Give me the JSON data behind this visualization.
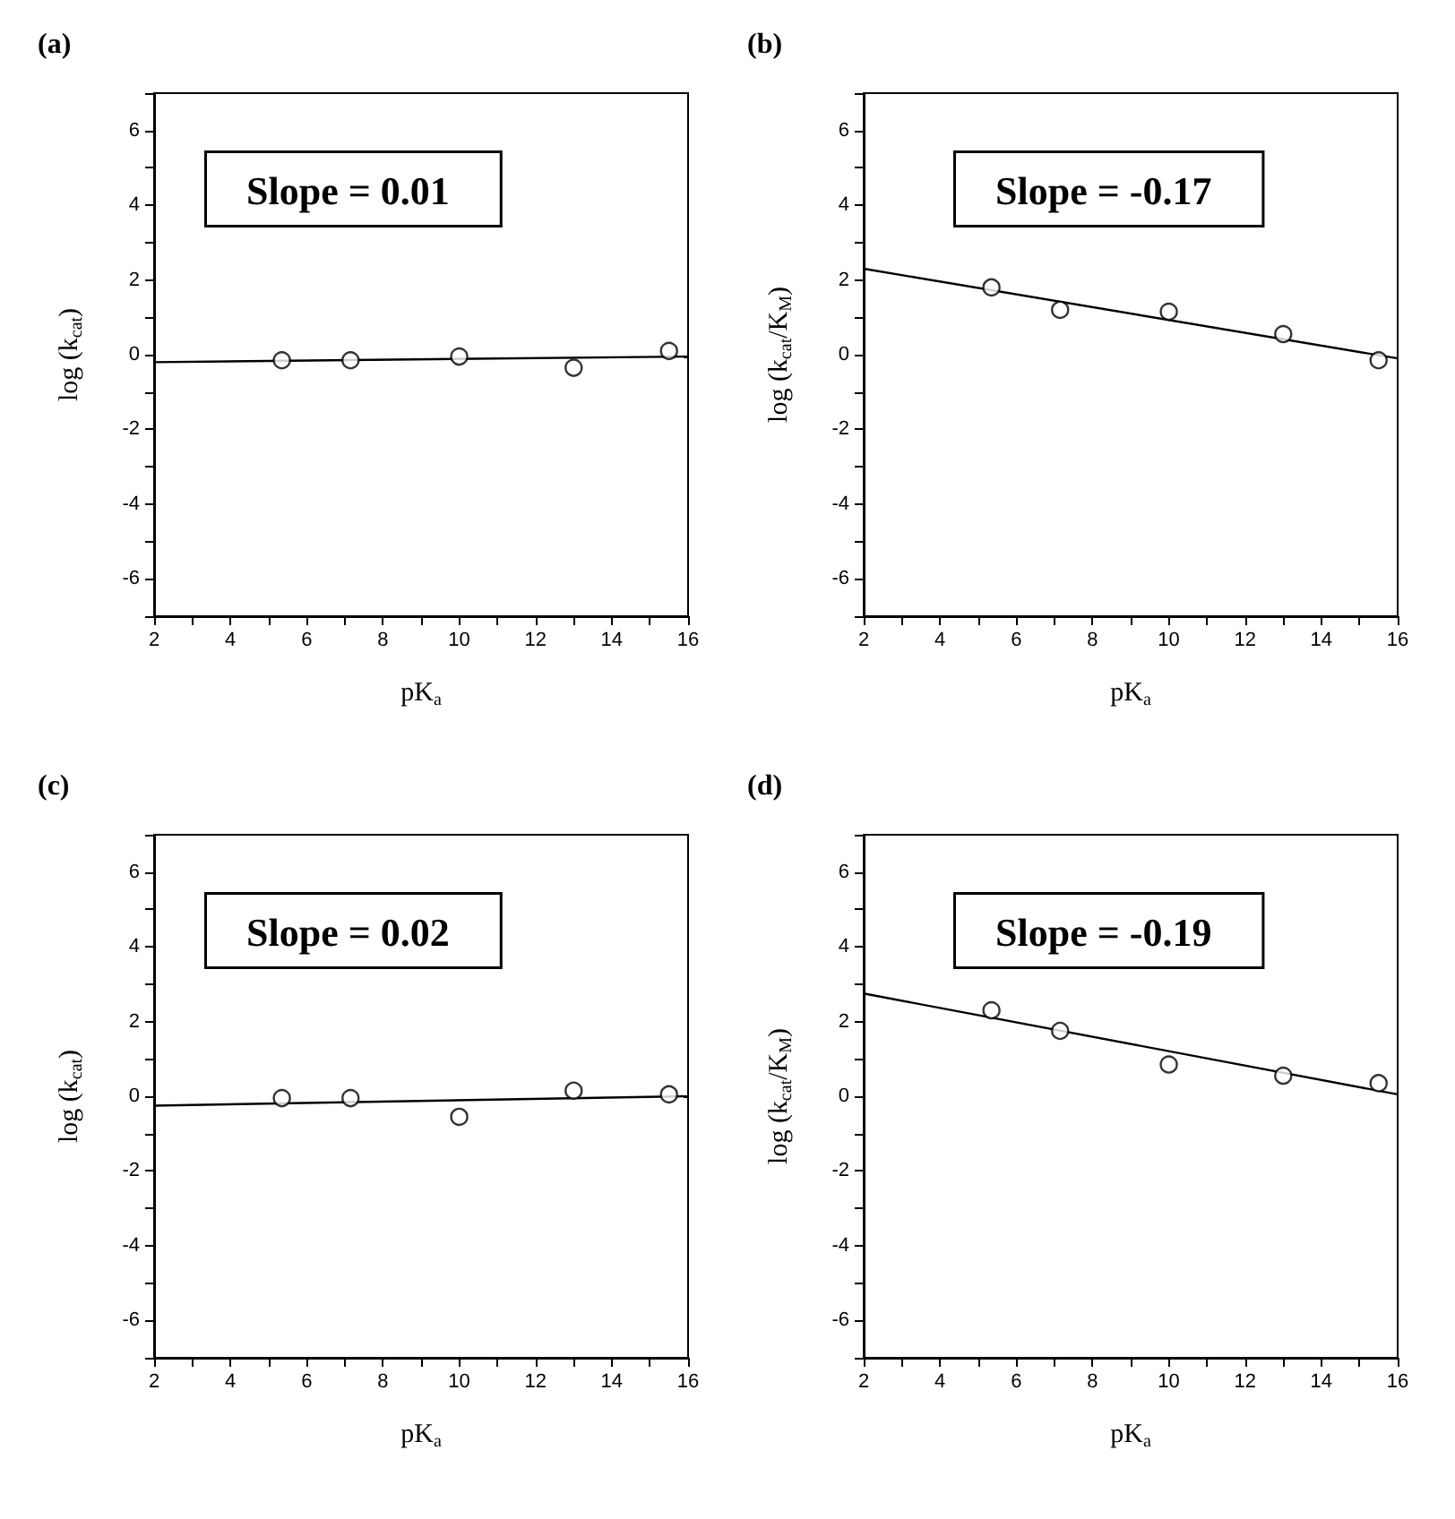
{
  "chart_data": [
    {
      "type": "scatter",
      "title": "(a)",
      "xlabel": "pK$_{a}$",
      "ylabel": "log (k$_{cat}$)",
      "annotations": [
        "Slope = 0.01"
      ],
      "marker": "circle",
      "grid": false,
      "xlim": [
        2,
        16
      ],
      "ylim": [
        -7,
        7
      ],
      "xticks": [
        2,
        {
          "value": 3,
          "label": null
        },
        4,
        {
          "value": 5,
          "label": null
        },
        6,
        {
          "value": 7,
          "label": null
        },
        8,
        {
          "value": 9,
          "label": null
        },
        10,
        {
          "value": 11,
          "label": null
        },
        12,
        {
          "value": 13,
          "label": null
        },
        14,
        {
          "value": 15,
          "label": null
        },
        16
      ],
      "yticks": [
        {
          "value": -7,
          "label": null
        },
        -6,
        {
          "value": -5,
          "label": null
        },
        -4,
        {
          "value": -3,
          "label": null
        },
        -2,
        {
          "value": -1,
          "label": null
        },
        0,
        {
          "value": 1,
          "label": null
        },
        2,
        {
          "value": 3,
          "label": null
        },
        4,
        {
          "value": 5,
          "label": null
        },
        6,
        {
          "value": 7,
          "label": null
        }
      ],
      "series": [
        {
          "type": "scatter",
          "color": "#000000",
          "x": [
            5.35,
            7.15,
            10,
            13,
            15.5
          ],
          "values": [
            -0.15,
            -0.15,
            -0.05,
            -0.35,
            0.1
          ]
        },
        {
          "type": "line",
          "marker": "none",
          "color": "#000000",
          "x": [
            2,
            16
          ],
          "values": [
            -0.2,
            -0.05
          ]
        }
      ]
    },
    {
      "type": "scatter",
      "title": "(b)",
      "xlabel": "pK$_{a}$",
      "ylabel": "log (k$_{cat}$/K$_{M}$)",
      "annotations": [
        "Slope = -0.17"
      ],
      "marker": "circle",
      "grid": false,
      "xlim": [
        2,
        16
      ],
      "ylim": [
        -7,
        7
      ],
      "xticks": [
        2,
        {
          "value": 3,
          "label": null
        },
        4,
        {
          "value": 5,
          "label": null
        },
        6,
        {
          "value": 7,
          "label": null
        },
        8,
        {
          "value": 9,
          "label": null
        },
        10,
        {
          "value": 11,
          "label": null
        },
        12,
        {
          "value": 13,
          "label": null
        },
        14,
        {
          "value": 15,
          "label": null
        },
        16
      ],
      "yticks": [
        {
          "value": -7,
          "label": null
        },
        -6,
        {
          "value": -5,
          "label": null
        },
        -4,
        {
          "value": -3,
          "label": null
        },
        -2,
        {
          "value": -1,
          "label": null
        },
        0,
        {
          "value": 1,
          "label": null
        },
        2,
        {
          "value": 3,
          "label": null
        },
        4,
        {
          "value": 5,
          "label": null
        },
        6,
        {
          "value": 7,
          "label": null
        }
      ],
      "series": [
        {
          "type": "scatter",
          "color": "#000000",
          "x": [
            5.35,
            7.15,
            10,
            13,
            15.5
          ],
          "values": [
            1.8,
            1.2,
            1.15,
            0.55,
            -0.15
          ]
        },
        {
          "type": "line",
          "marker": "none",
          "color": "#000000",
          "x": [
            2,
            16
          ],
          "values": [
            2.3,
            -0.1
          ]
        }
      ]
    },
    {
      "type": "scatter",
      "title": "(c)",
      "xlabel": "pK$_{a}$",
      "ylabel": "log (k$_{cat}$)",
      "annotations": [
        "Slope = 0.02"
      ],
      "marker": "circle",
      "grid": false,
      "xlim": [
        2,
        16
      ],
      "ylim": [
        -7,
        7
      ],
      "xticks": [
        2,
        {
          "value": 3,
          "label": null
        },
        4,
        {
          "value": 5,
          "label": null
        },
        6,
        {
          "value": 7,
          "label": null
        },
        8,
        {
          "value": 9,
          "label": null
        },
        10,
        {
          "value": 11,
          "label": null
        },
        12,
        {
          "value": 13,
          "label": null
        },
        14,
        {
          "value": 15,
          "label": null
        },
        16
      ],
      "yticks": [
        {
          "value": -7,
          "label": null
        },
        -6,
        {
          "value": -5,
          "label": null
        },
        -4,
        {
          "value": -3,
          "label": null
        },
        -2,
        {
          "value": -1,
          "label": null
        },
        0,
        {
          "value": 1,
          "label": null
        },
        2,
        {
          "value": 3,
          "label": null
        },
        4,
        {
          "value": 5,
          "label": null
        },
        6,
        {
          "value": 7,
          "label": null
        }
      ],
      "series": [
        {
          "type": "scatter",
          "color": "#000000",
          "x": [
            5.35,
            7.15,
            10,
            13,
            15.5
          ],
          "values": [
            -0.05,
            -0.05,
            -0.55,
            0.15,
            0.05
          ]
        },
        {
          "type": "line",
          "marker": "none",
          "color": "#000000",
          "x": [
            2,
            16
          ],
          "values": [
            -0.25,
            0
          ]
        }
      ]
    },
    {
      "type": "scatter",
      "title": "(d)",
      "xlabel": "pK$_{a}$",
      "ylabel": "log (k$_{cat}$/K$_{M}$)",
      "annotations": [
        "Slope = -0.19"
      ],
      "marker": "circle",
      "grid": false,
      "xlim": [
        2,
        16
      ],
      "ylim": [
        -7,
        7
      ],
      "xticks": [
        2,
        {
          "value": 3,
          "label": null
        },
        4,
        {
          "value": 5,
          "label": null
        },
        6,
        {
          "value": 7,
          "label": null
        },
        8,
        {
          "value": 9,
          "label": null
        },
        10,
        {
          "value": 11,
          "label": null
        },
        12,
        {
          "value": 13,
          "label": null
        },
        14,
        {
          "value": 15,
          "label": null
        },
        16
      ],
      "yticks": [
        {
          "value": -7,
          "label": null
        },
        -6,
        {
          "value": -5,
          "label": null
        },
        -4,
        {
          "value": -3,
          "label": null
        },
        -2,
        {
          "value": -1,
          "label": null
        },
        0,
        {
          "value": 1,
          "label": null
        },
        2,
        {
          "value": 3,
          "label": null
        },
        4,
        {
          "value": 5,
          "label": null
        },
        6,
        {
          "value": 7,
          "label": null
        }
      ],
      "series": [
        {
          "type": "scatter",
          "color": "#000000",
          "x": [
            5.35,
            7.15,
            10,
            13,
            15.5
          ],
          "values": [
            2.3,
            1.75,
            0.85,
            0.55,
            0.35
          ]
        },
        {
          "type": "line",
          "marker": "none",
          "color": "#000000",
          "x": [
            2,
            16
          ],
          "values": [
            2.75,
            0.05
          ]
        }
      ]
    }
  ]
}
